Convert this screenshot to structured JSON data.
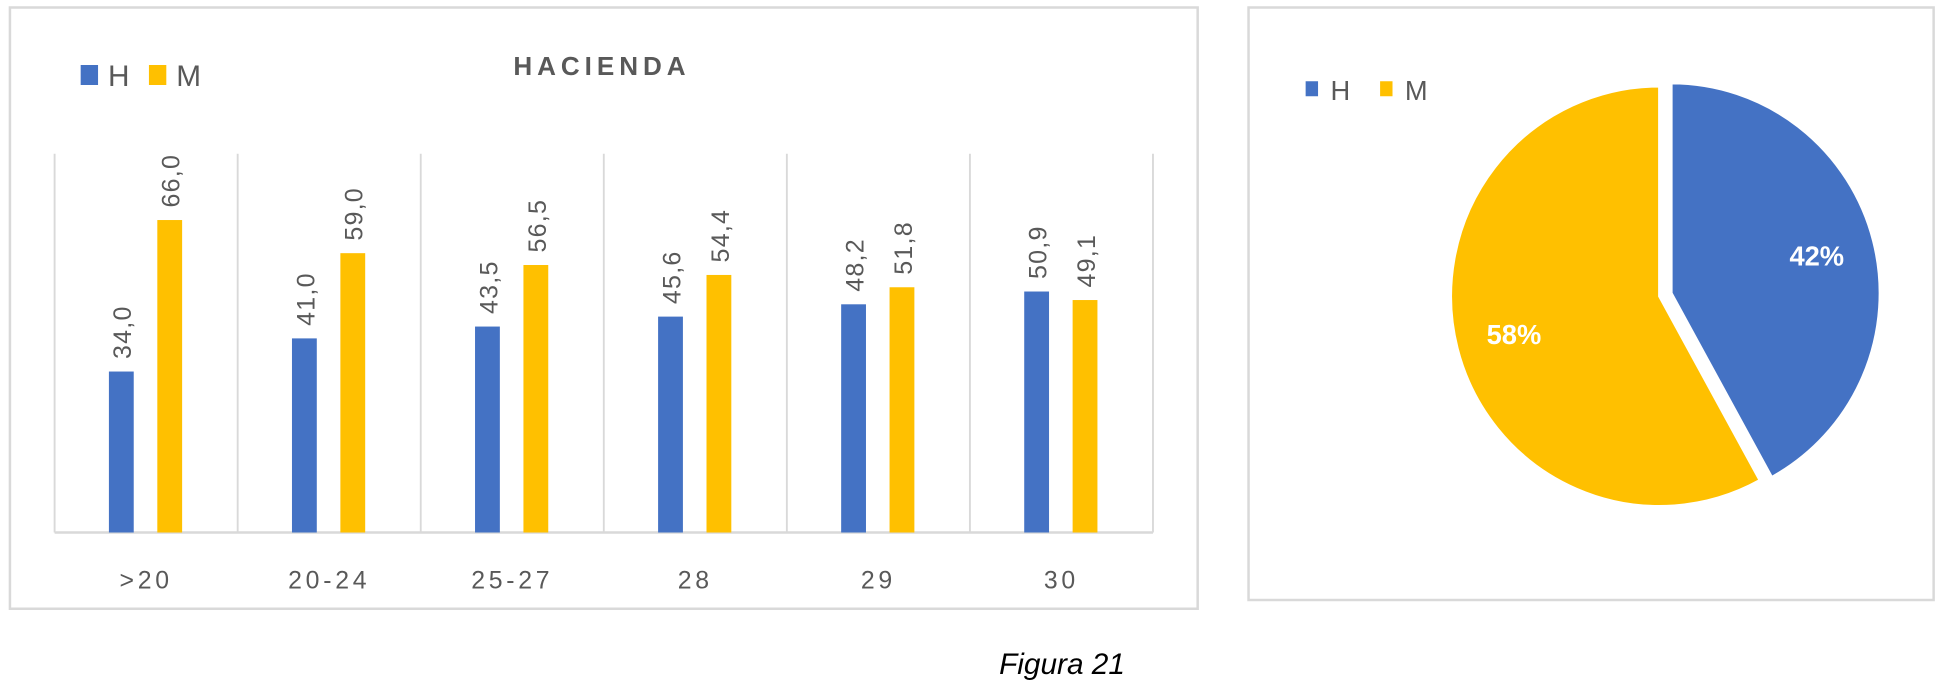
{
  "chart_data": [
    {
      "type": "bar",
      "title": "HACIENDA",
      "categories": [
        ">20",
        "20-24",
        "25-27",
        "28",
        "29",
        "30"
      ],
      "series": [
        {
          "name": "H",
          "color": "#4472C4",
          "values": [
            34.0,
            41.0,
            43.5,
            45.6,
            48.2,
            50.9
          ],
          "labels": [
            "34,0",
            "41,0",
            "43,5",
            "45,6",
            "48,2",
            "50,9"
          ]
        },
        {
          "name": "M",
          "color": "#FFC000",
          "values": [
            66.0,
            59.0,
            56.5,
            54.4,
            51.8,
            49.1
          ],
          "labels": [
            "66,0",
            "59,0",
            "56,5",
            "54,4",
            "51,8",
            "49,1"
          ]
        }
      ],
      "ylim": [
        0,
        80
      ],
      "grid": "vertical category separators",
      "legend": "top-left"
    },
    {
      "type": "pie",
      "slices": [
        {
          "name": "H",
          "value": 42,
          "label": "42%",
          "color": "#4472C4"
        },
        {
          "name": "M",
          "value": 58,
          "label": "58%",
          "color": "#FFC000"
        }
      ],
      "legend": "top-left"
    }
  ],
  "caption": "Figura 21"
}
